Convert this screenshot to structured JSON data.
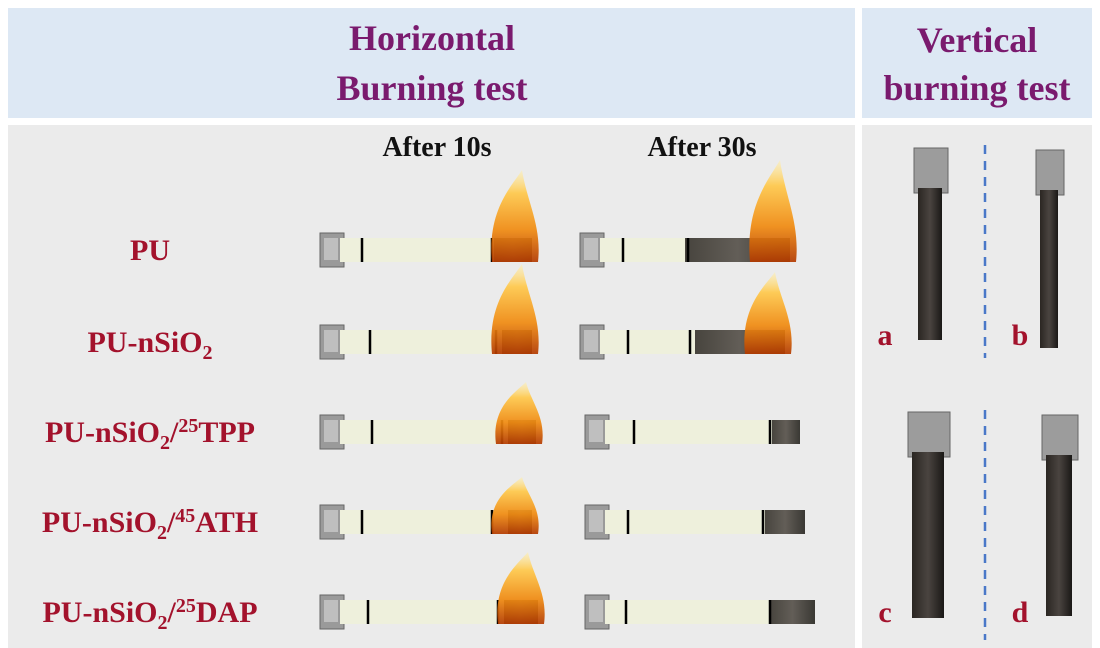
{
  "header": {
    "horizontal": [
      "Horizontal",
      "Burning test"
    ],
    "vertical": [
      "Vertical",
      "burning test"
    ]
  },
  "columns": [
    "After 10s",
    "After 30s"
  ],
  "samples": [
    [
      "PU"
    ],
    [
      "PU-nSiO",
      "2"
    ],
    [
      "PU-nSiO",
      "2",
      "/",
      "25",
      "TPP"
    ],
    [
      "PU-nSiO",
      "2",
      "/",
      "45",
      "ATH"
    ],
    [
      "PU-nSiO",
      "2",
      "/",
      "25",
      "DAP"
    ]
  ],
  "vertical_labels": [
    "a",
    "b",
    "c",
    "d"
  ]
}
